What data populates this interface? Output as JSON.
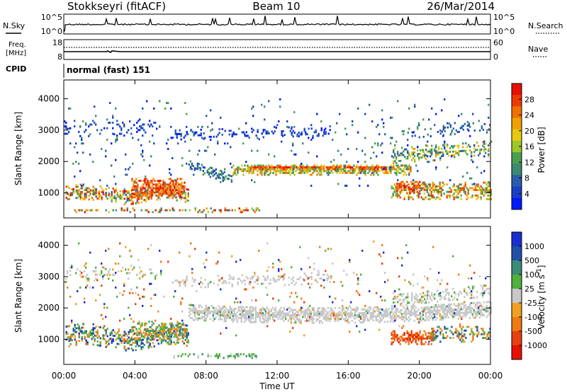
{
  "header": {
    "station": "Stokkseyri (fitACF)",
    "beam": "Beam 10",
    "date": "26/Mar/2014"
  },
  "labels": {
    "nsky": "N.Sky",
    "nsearch": "N.Search",
    "freq": "Freq.",
    "freq_unit": "[MHz]",
    "nave": "Nave",
    "cpid": "CPID",
    "cpid_value": "normal (fast) 151"
  },
  "colors": {
    "power_scale": [
      "#0019ff",
      "#1a3fc4",
      "#2a5cae",
      "#3c8a6f",
      "#4aa050",
      "#9ac828",
      "#e8c810",
      "#f0a000",
      "#f07000",
      "#ee3a00",
      "#e81000"
    ],
    "velocity_scale": [
      "#1a2fd0",
      "#2050a8",
      "#3c8a78",
      "#50b03c",
      "#c8c8c8",
      "#f0a020",
      "#ee7a10",
      "#e84010",
      "#e81000"
    ]
  },
  "chart_data": [
    {
      "type": "line",
      "name": "noise-panel",
      "yticks_left": [
        "10^5",
        "10^0"
      ],
      "yticks_right": [
        "10^5",
        "10^0"
      ]
    },
    {
      "type": "line",
      "name": "freq-panel",
      "yticks_left": [
        "18",
        "8"
      ],
      "yticks_right": [
        "60",
        "0"
      ]
    },
    {
      "type": "heatmap",
      "name": "power",
      "ylabel": "Slant Range [km]",
      "yticks": [
        "1000",
        "2000",
        "3000",
        "4000"
      ],
      "ylim": [
        200,
        4600
      ],
      "colorbar_label": "Power [dB]",
      "colorbar_ticks": [
        "4",
        "8",
        "12",
        "16",
        "20",
        "24",
        "28"
      ]
    },
    {
      "type": "heatmap",
      "name": "velocity",
      "ylabel": "Slant Range [km]",
      "yticks": [
        "1000",
        "2000",
        "3000",
        "4000"
      ],
      "ylim": [
        200,
        4600
      ],
      "colorbar_label": "Velocity [m s",
      "colorbar_label_sup": "-1",
      "colorbar_label_end": "]",
      "colorbar_ticks": [
        "1000",
        "500",
        "100",
        "25",
        "-25",
        "-100",
        "-500",
        "-1000"
      ]
    }
  ],
  "xaxis": {
    "ticks": [
      "00:00",
      "04:00",
      "08:00",
      "12:00",
      "16:00",
      "20:00",
      "00:00"
    ],
    "xlabel": "Time UT"
  }
}
